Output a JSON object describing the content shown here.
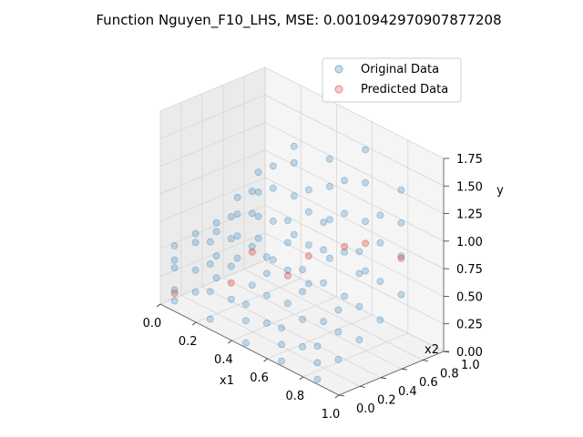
{
  "chart_data": {
    "type": "scatter",
    "projection": "3d",
    "title": "Function Nguyen_F10_LHS, MSE: 0.0010942970907877208",
    "xlabel": "x1",
    "ylabel": "x2",
    "zlabel": "y",
    "xlim": [
      0.0,
      1.0
    ],
    "ylim": [
      0.0,
      1.0
    ],
    "zlim": [
      0.0,
      1.75
    ],
    "x_ticks": [
      "0.0",
      "0.2",
      "0.4",
      "0.6",
      "0.8",
      "1.0"
    ],
    "y_ticks": [
      "0.0",
      "0.2",
      "0.4",
      "0.6",
      "0.8",
      "1.0"
    ],
    "z_ticks": [
      "0.00",
      "0.25",
      "0.50",
      "0.75",
      "1.00",
      "1.25",
      "1.50",
      "1.75"
    ],
    "grid": true,
    "legend_position": "top-right",
    "colors": {
      "original": "#1f77b4",
      "predicted": "#d62728"
    },
    "series": [
      {
        "name": "Original Data",
        "color": "#1f77b4",
        "points": [
          [
            0.05,
            0.05,
            0.05
          ],
          [
            0.05,
            0.05,
            0.15
          ],
          [
            0.05,
            0.05,
            0.35
          ],
          [
            0.05,
            0.05,
            0.42
          ],
          [
            0.05,
            0.05,
            0.55
          ],
          [
            0.05,
            0.25,
            0.05
          ],
          [
            0.05,
            0.25,
            0.25
          ],
          [
            0.05,
            0.25,
            0.5
          ],
          [
            0.05,
            0.25,
            0.58
          ],
          [
            0.05,
            0.45,
            0.1
          ],
          [
            0.05,
            0.45,
            0.3
          ],
          [
            0.05,
            0.45,
            0.52
          ],
          [
            0.05,
            0.45,
            0.6
          ],
          [
            0.05,
            0.65,
            0.2
          ],
          [
            0.05,
            0.65,
            0.4
          ],
          [
            0.05,
            0.65,
            0.6
          ],
          [
            0.05,
            0.65,
            0.75
          ],
          [
            0.05,
            0.85,
            0.3
          ],
          [
            0.05,
            0.85,
            0.5
          ],
          [
            0.05,
            0.85,
            0.72
          ],
          [
            0.05,
            0.85,
            0.9
          ],
          [
            0.25,
            0.05,
            0.05
          ],
          [
            0.25,
            0.05,
            0.3
          ],
          [
            0.25,
            0.05,
            0.55
          ],
          [
            0.25,
            0.05,
            0.75
          ],
          [
            0.25,
            0.25,
            0.15
          ],
          [
            0.25,
            0.25,
            0.45
          ],
          [
            0.25,
            0.25,
            0.7
          ],
          [
            0.25,
            0.25,
            0.9
          ],
          [
            0.25,
            0.45,
            0.2
          ],
          [
            0.25,
            0.45,
            0.55
          ],
          [
            0.25,
            0.45,
            0.85
          ],
          [
            0.25,
            0.45,
            1.05
          ],
          [
            0.25,
            0.65,
            0.35
          ],
          [
            0.25,
            0.65,
            0.7
          ],
          [
            0.25,
            0.65,
            1.0
          ],
          [
            0.25,
            0.65,
            1.2
          ],
          [
            0.25,
            0.85,
            0.5
          ],
          [
            0.25,
            0.85,
            0.85
          ],
          [
            0.25,
            0.85,
            1.15
          ],
          [
            0.25,
            0.85,
            1.3
          ],
          [
            0.45,
            0.05,
            0.0
          ],
          [
            0.45,
            0.05,
            0.2
          ],
          [
            0.45,
            0.05,
            0.35
          ],
          [
            0.45,
            0.25,
            0.1
          ],
          [
            0.45,
            0.25,
            0.35
          ],
          [
            0.45,
            0.25,
            0.55
          ],
          [
            0.45,
            0.25,
            0.7
          ],
          [
            0.45,
            0.45,
            0.2
          ],
          [
            0.45,
            0.45,
            0.5
          ],
          [
            0.45,
            0.45,
            0.75
          ],
          [
            0.45,
            0.45,
            0.95
          ],
          [
            0.45,
            0.65,
            0.3
          ],
          [
            0.45,
            0.65,
            0.65
          ],
          [
            0.45,
            0.65,
            0.95
          ],
          [
            0.45,
            0.65,
            1.15
          ],
          [
            0.45,
            0.85,
            0.45
          ],
          [
            0.45,
            0.85,
            0.8
          ],
          [
            0.45,
            0.85,
            1.1
          ],
          [
            0.45,
            0.85,
            1.35
          ],
          [
            0.65,
            0.05,
            0.0
          ],
          [
            0.65,
            0.05,
            0.15
          ],
          [
            0.65,
            0.05,
            0.3
          ],
          [
            0.65,
            0.25,
            0.05
          ],
          [
            0.65,
            0.25,
            0.3
          ],
          [
            0.65,
            0.25,
            0.55
          ],
          [
            0.65,
            0.25,
            0.75
          ],
          [
            0.65,
            0.45,
            0.2
          ],
          [
            0.65,
            0.45,
            0.55
          ],
          [
            0.65,
            0.45,
            0.85
          ],
          [
            0.65,
            0.45,
            1.1
          ],
          [
            0.65,
            0.65,
            0.35
          ],
          [
            0.65,
            0.65,
            0.75
          ],
          [
            0.65,
            0.65,
            1.1
          ],
          [
            0.65,
            0.65,
            1.4
          ],
          [
            0.65,
            0.85,
            0.5
          ],
          [
            0.65,
            0.85,
            0.95
          ],
          [
            0.65,
            0.85,
            1.3
          ],
          [
            0.65,
            0.85,
            1.6
          ],
          [
            0.85,
            0.05,
            0.0
          ],
          [
            0.85,
            0.05,
            0.15
          ],
          [
            0.85,
            0.05,
            0.3
          ],
          [
            0.85,
            0.25,
            0.1
          ],
          [
            0.85,
            0.25,
            0.35
          ],
          [
            0.85,
            0.25,
            0.55
          ],
          [
            0.85,
            0.45,
            0.2
          ],
          [
            0.85,
            0.45,
            0.5
          ],
          [
            0.85,
            0.45,
            0.8
          ],
          [
            0.85,
            0.45,
            1.0
          ],
          [
            0.85,
            0.65,
            0.3
          ],
          [
            0.85,
            0.65,
            0.65
          ],
          [
            0.85,
            0.65,
            1.0
          ],
          [
            0.85,
            0.65,
            1.25
          ],
          [
            0.85,
            0.85,
            0.45
          ],
          [
            0.85,
            0.85,
            0.8
          ],
          [
            0.85,
            0.85,
            1.1
          ],
          [
            0.85,
            0.85,
            1.4
          ]
        ]
      },
      {
        "name": "Predicted Data",
        "color": "#d62728",
        "points": [
          [
            0.05,
            0.05,
            0.12
          ],
          [
            0.25,
            0.45,
            0.5
          ],
          [
            0.45,
            0.65,
            0.55
          ],
          [
            0.65,
            0.65,
            0.8
          ],
          [
            0.85,
            0.85,
            0.78
          ],
          [
            0.25,
            0.25,
            0.3
          ],
          [
            0.65,
            0.85,
            0.75
          ],
          [
            0.45,
            0.45,
            0.45
          ]
        ]
      }
    ]
  }
}
